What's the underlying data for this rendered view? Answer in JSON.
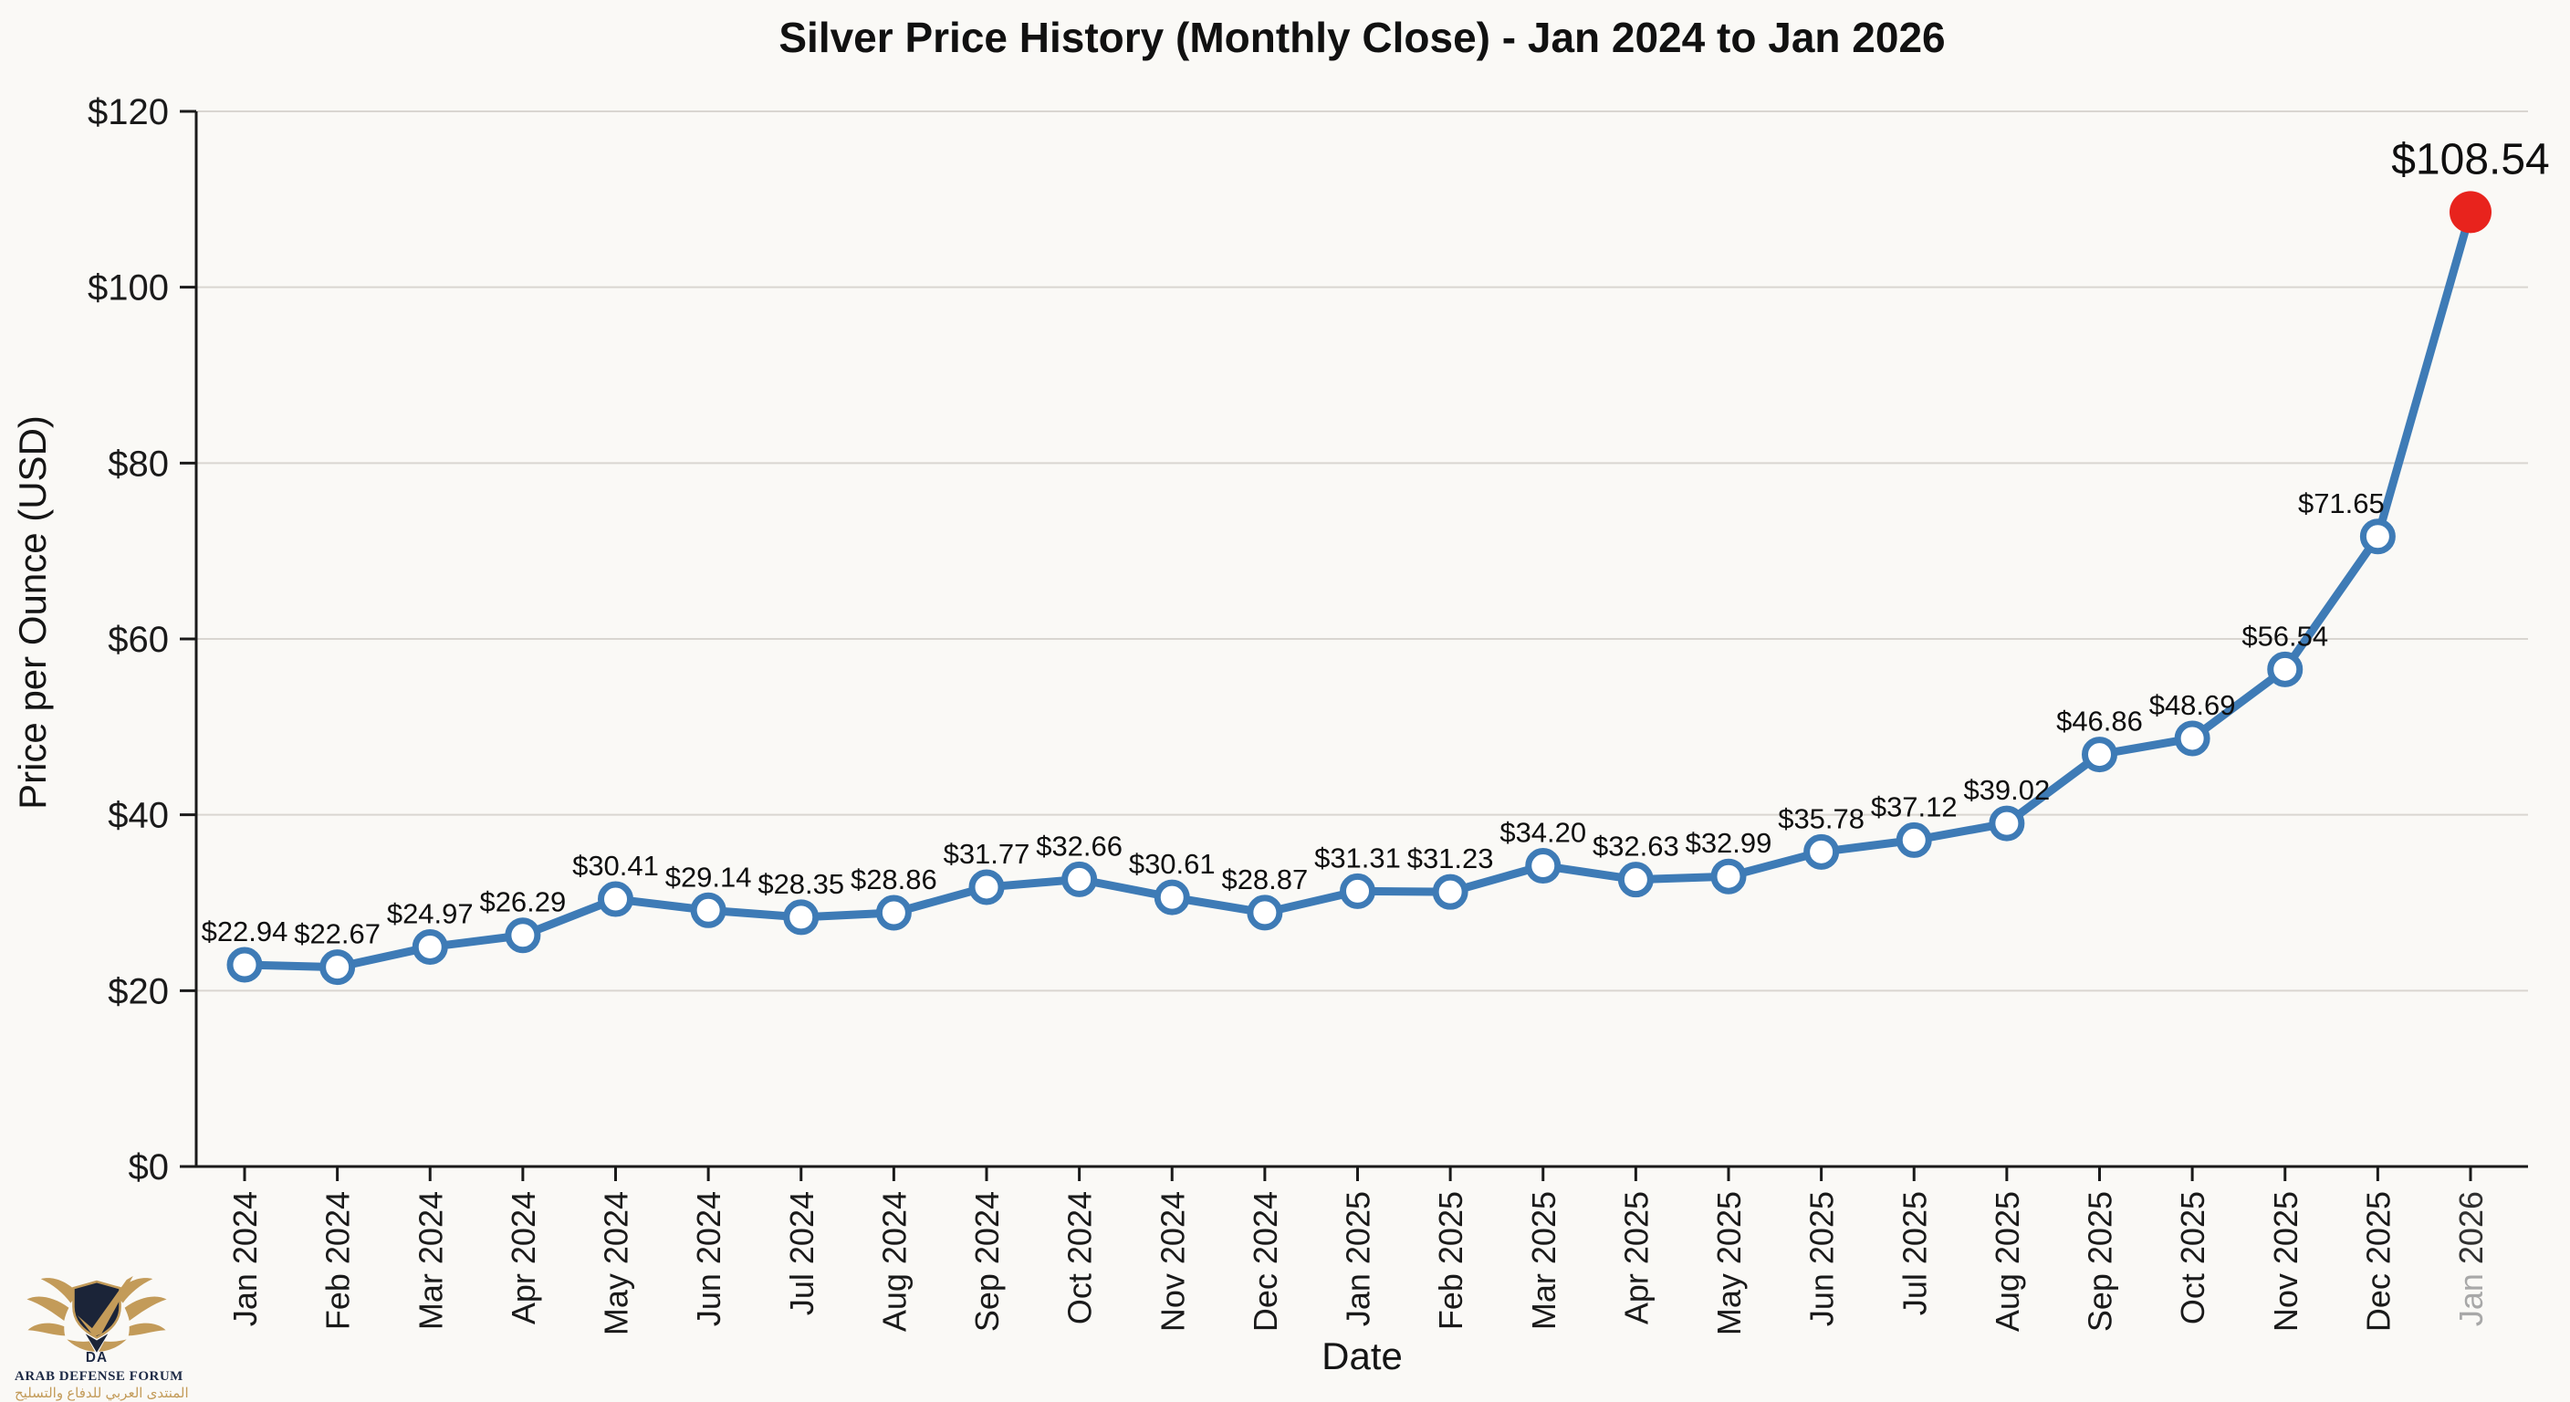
{
  "page": {
    "background": "#faf9f6"
  },
  "chart_data": {
    "type": "line",
    "title": "Silver Price History (Monthly Close) - Jan 2024 to Jan 2026",
    "xlabel": "Date",
    "ylabel": "Price per Ounce (USD)",
    "categories": [
      "Jan 2024",
      "Feb 2024",
      "Mar 2024",
      "Apr 2024",
      "May 2024",
      "Jun 2024",
      "Jul 2024",
      "Aug 2024",
      "Sep 2024",
      "Oct 2024",
      "Nov 2024",
      "Dec 2024",
      "Jan 2025",
      "Feb 2025",
      "Mar 2025",
      "Apr 2025",
      "May 2025",
      "Jun 2025",
      "Jul 2025",
      "Aug 2025",
      "Sep 2025",
      "Oct 2025",
      "Nov 2025",
      "Dec 2025",
      "Jan 2026"
    ],
    "values": [
      22.94,
      22.67,
      24.97,
      26.29,
      30.41,
      29.14,
      28.35,
      28.86,
      31.77,
      32.66,
      30.61,
      28.87,
      31.31,
      31.23,
      34.2,
      32.63,
      32.99,
      35.78,
      37.12,
      39.02,
      46.86,
      48.69,
      56.54,
      71.65,
      108.54
    ],
    "point_labels": [
      "$22.94",
      "$22.67",
      "$24.97",
      "$26.29",
      "$30.41",
      "$29.14",
      "$28.35",
      "$28.86",
      "$31.77",
      "$32.66",
      "$30.61",
      "$28.87",
      "$31.31",
      "$31.23",
      "$34.20",
      "$32.63",
      "$32.99",
      "$35.78",
      "$37.12",
      "$39.02",
      "$46.86",
      "$48.69",
      "$56.54",
      "$71.65",
      "$108.54"
    ],
    "ylim": [
      0,
      120
    ],
    "y_ticks": [
      {
        "value": 0,
        "label": "$0"
      },
      {
        "value": 20,
        "label": "$20"
      },
      {
        "value": 40,
        "label": "$40"
      },
      {
        "value": 60,
        "label": "$60"
      },
      {
        "value": 80,
        "label": "$80"
      },
      {
        "value": 100,
        "label": "$100"
      },
      {
        "value": 120,
        "label": "$120"
      }
    ],
    "grid": "horizontal",
    "legend": "none",
    "line_color": "#3e7bb6",
    "marker_fill": "#ffffff",
    "last_marker_color": "#e8231d",
    "grid_color": "#d9d6d1",
    "axis_color": "#1a1a1a",
    "label_color": "#0f0f0f",
    "last_tick_month_color": "#a8a8a8",
    "last_tick_year_color": "#303030",
    "label_offsets": [
      {
        "index": 23,
        "dx": -40
      }
    ]
  },
  "logo": {
    "monogram": "DA",
    "title": "ARAB DEFENSE FORUM",
    "subtitle_ar": "المنتدى العربي للدفاع والتسليح",
    "gold": "#c39b59",
    "navy": "#1d2a45"
  }
}
